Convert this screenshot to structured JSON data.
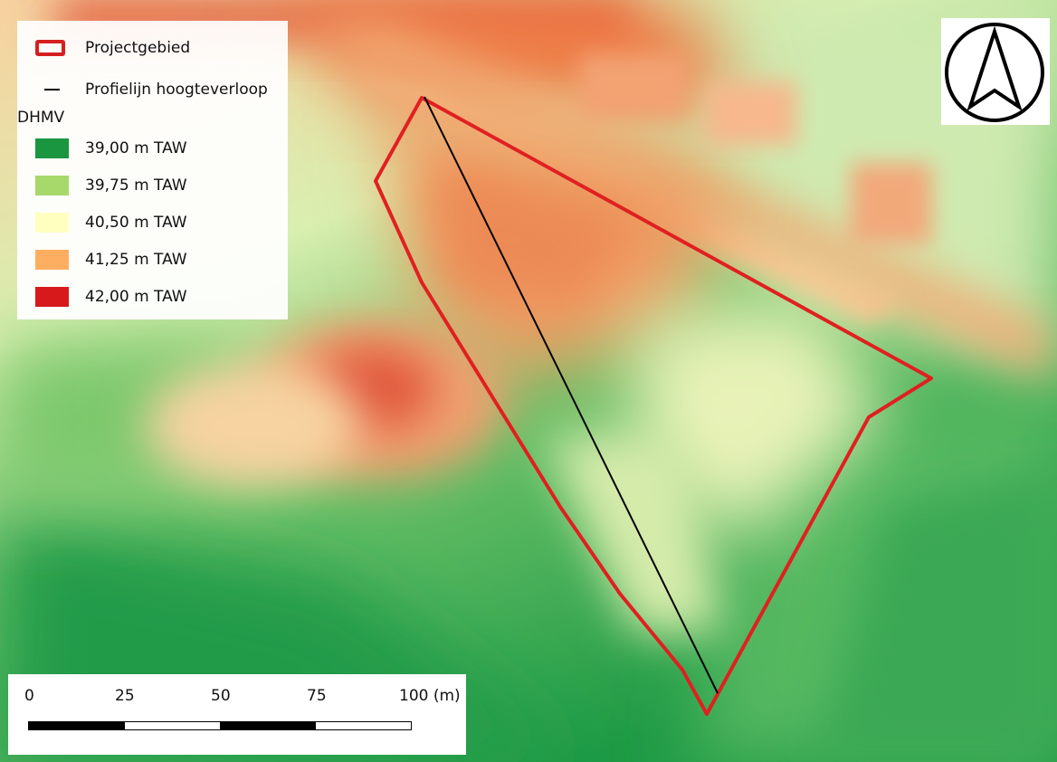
{
  "legend": {
    "project_area_label": "Projectgebied",
    "profile_line_label": "Profielijn hoogteverloop",
    "dem_title": "DHMV",
    "classes": [
      {
        "label": "39,00 m TAW",
        "color": "#1a9641"
      },
      {
        "label": "39,75 m TAW",
        "color": "#a6d96a"
      },
      {
        "label": "40,50 m TAW",
        "color": "#ffffc0"
      },
      {
        "label": "41,25 m TAW",
        "color": "#fdae61"
      },
      {
        "label": "42,00 m TAW",
        "color": "#d7191c"
      }
    ]
  },
  "scalebar": {
    "ticks": [
      "0",
      "25",
      "50",
      "75",
      "100 (m)"
    ]
  },
  "north_arrow": {
    "icon": "north-arrow-icon"
  },
  "colors": {
    "project_outline": "#e02020",
    "profile_line": "#000000"
  }
}
